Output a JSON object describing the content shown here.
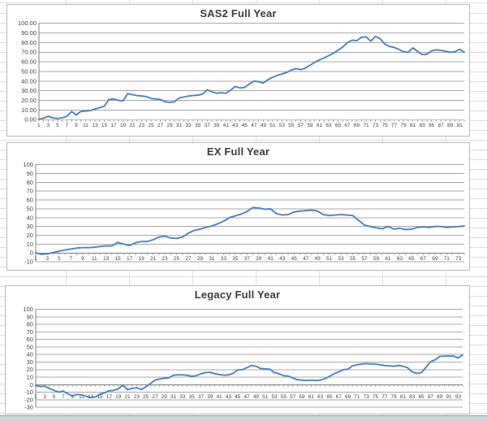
{
  "chart_data": [
    {
      "type": "line",
      "title": "SAS2 Full Year",
      "ylim": [
        0,
        100
      ],
      "y_step": 10,
      "grid": true,
      "legend": "none",
      "line_color": "#4F81BD",
      "y_tick_labels": [
        "0.00",
        "10.00",
        "20.00",
        "30.00",
        "40.00",
        "50.00",
        "60.00",
        "70.00",
        "80.00",
        "90.00",
        "100.00"
      ],
      "x_label_start": 1,
      "x_label_step": 2,
      "x_last_label": 91,
      "values": [
        0.3,
        1.5,
        3.5,
        1.8,
        1.2,
        2.0,
        3.5,
        8.5,
        5.0,
        8.5,
        9.0,
        9.5,
        11.0,
        12.5,
        14.0,
        21.0,
        21.5,
        20.0,
        19.5,
        27.0,
        26.0,
        25.0,
        24.5,
        24.0,
        22.0,
        21.5,
        21.0,
        18.5,
        18.0,
        18.5,
        22.5,
        23.5,
        24.5,
        25.0,
        25.5,
        26.5,
        31.0,
        29.0,
        27.5,
        28.0,
        27.5,
        30.5,
        34.5,
        33.0,
        33.5,
        37.0,
        40.0,
        39.5,
        38.0,
        41.5,
        44.0,
        46.0,
        47.5,
        49.0,
        51.5,
        53.0,
        52.0,
        53.5,
        56.5,
        59.5,
        62.0,
        64.0,
        66.5,
        69.0,
        72.0,
        75.5,
        80.0,
        82.5,
        82.0,
        85.5,
        86.0,
        81.5,
        86.5,
        84.0,
        78.5,
        76.0,
        75.0,
        73.0,
        70.5,
        70.0,
        74.5,
        71.0,
        67.5,
        68.0,
        71.5,
        72.5,
        72.0,
        71.0,
        70.0,
        70.5,
        73.0,
        70.0
      ]
    },
    {
      "type": "line",
      "title": "EX Full Year",
      "ylim": [
        -10,
        100
      ],
      "y_step": 10,
      "grid": true,
      "legend": "none",
      "line_color": "#4F81BD",
      "y_tick_labels": [
        "-10",
        "0",
        "10",
        "20",
        "30",
        "40",
        "50",
        "60",
        "70",
        "80",
        "90",
        "100"
      ],
      "x_label_start": 1,
      "x_label_step": 2,
      "x_last_label": 73,
      "values": [
        0.3,
        -1.5,
        -1.0,
        0.5,
        2.0,
        3.5,
        4.5,
        5.5,
        6.0,
        6.0,
        6.5,
        7.5,
        8.0,
        8.0,
        12.0,
        10.0,
        8.5,
        11.5,
        13.0,
        13.0,
        15.0,
        18.0,
        19.0,
        17.0,
        16.5,
        18.0,
        22.5,
        25.5,
        27.0,
        29.0,
        30.5,
        33.0,
        36.0,
        40.0,
        42.0,
        44.0,
        47.0,
        51.5,
        51.0,
        49.5,
        50.0,
        44.5,
        43.0,
        43.5,
        46.5,
        47.5,
        48.0,
        48.5,
        47.5,
        43.5,
        42.5,
        43.0,
        43.5,
        43.0,
        42.5,
        37.0,
        31.5,
        30.0,
        28.5,
        27.5,
        30.0,
        27.0,
        28.0,
        26.5,
        27.0,
        29.0,
        29.5,
        29.0,
        30.0,
        30.0,
        29.0,
        29.5,
        30.0,
        30.5
      ]
    },
    {
      "type": "line",
      "title": "Legacy Full Year",
      "ylim": [
        -30,
        100
      ],
      "y_step": 10,
      "grid": true,
      "legend": "none",
      "line_color": "#4F81BD",
      "y_tick_labels": [
        "-30",
        "-20",
        "-10",
        "0",
        "10",
        "20",
        "30",
        "40",
        "50",
        "60",
        "70",
        "80",
        "90",
        "100"
      ],
      "x_label_start": 1,
      "x_label_step": 2,
      "x_last_label": 93,
      "values": [
        -1,
        -2.5,
        -2,
        -5,
        -7.5,
        -10,
        -8.5,
        -12,
        -15,
        -13,
        -13.5,
        -15.5,
        -17,
        -16.5,
        -12.5,
        -11,
        -8,
        -7.5,
        -5.5,
        -0.5,
        -6.5,
        -5,
        -4,
        -6.5,
        -3,
        1.5,
        6,
        7.5,
        8.5,
        9,
        12.5,
        13,
        13,
        12.5,
        11,
        12,
        14.5,
        16,
        16.5,
        14.5,
        13.5,
        12.5,
        13,
        15,
        19.5,
        20,
        22.5,
        25.5,
        24.5,
        21.5,
        21,
        20.5,
        16,
        14.5,
        12,
        11.5,
        9,
        6.5,
        6,
        5.5,
        6,
        5.5,
        6,
        8,
        11,
        14.5,
        17,
        20,
        20.5,
        25,
        26.5,
        27.5,
        28,
        27.5,
        27.5,
        26.5,
        25.5,
        25,
        24.5,
        25.5,
        24.5,
        22.5,
        17,
        15,
        16,
        23,
        30.5,
        33,
        37.5,
        38,
        38,
        38,
        35.5,
        39.5
      ]
    }
  ]
}
